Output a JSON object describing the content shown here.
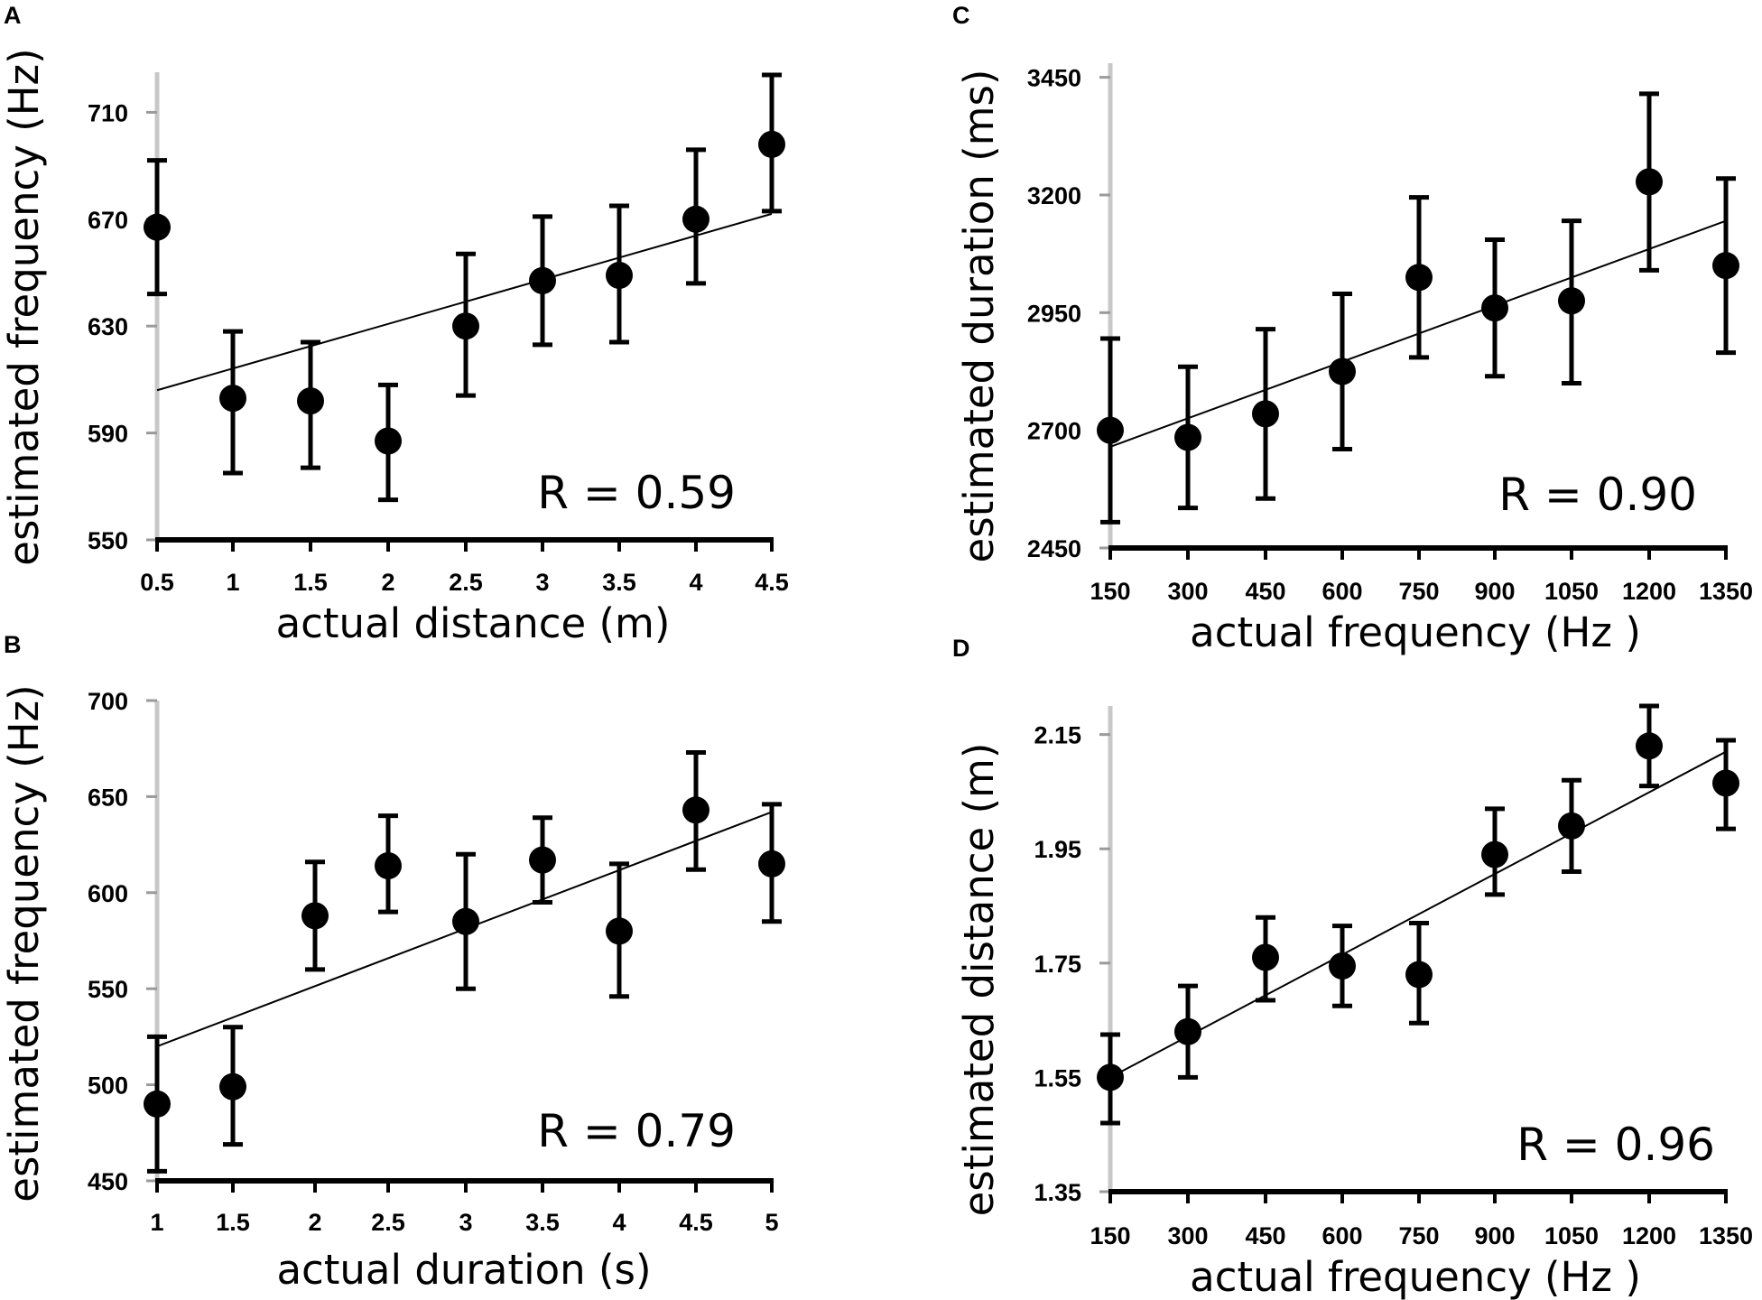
{
  "chart_data": [
    {
      "type": "scatter",
      "panel": "A",
      "xlabel": "actual distance (m)",
      "ylabel": "estimated frequency (Hz)",
      "annotation": "R = 0.59",
      "x_ticks": [
        "0.5",
        "1",
        "1.5",
        "2",
        "2.5",
        "3",
        "3.5",
        "4",
        "4.5"
      ],
      "y_ticks": [
        "550",
        "590",
        "630",
        "670",
        "710"
      ],
      "xlim": [
        0.5,
        4.5
      ],
      "ylim": [
        550,
        725
      ],
      "x": [
        0.5,
        1,
        1.5,
        2,
        2.5,
        3,
        3.5,
        4,
        4.5
      ],
      "y": [
        667,
        603,
        602,
        587,
        630,
        647,
        649,
        670,
        698
      ],
      "err_low": [
        642,
        575,
        577,
        565,
        604,
        623,
        624,
        646,
        673
      ],
      "err_high": [
        692,
        628,
        624,
        608,
        657,
        671,
        675,
        696,
        724
      ],
      "trendline": [
        [
          0.5,
          606
        ],
        [
          4.5,
          672
        ]
      ]
    },
    {
      "type": "scatter",
      "panel": "B",
      "xlabel": "actual duration (s)",
      "ylabel": "estimated frequency (Hz)",
      "annotation": "R = 0.79",
      "x_ticks": [
        "1",
        "1.5",
        "2",
        "2.5",
        "3",
        "3.5",
        "4",
        "4.5",
        "5"
      ],
      "y_ticks": [
        "450",
        "500",
        "550",
        "600",
        "650",
        "700"
      ],
      "xlim": [
        1,
        5
      ],
      "ylim": [
        450,
        700
      ],
      "x": [
        1,
        1.5,
        2,
        2.5,
        3,
        3.5,
        4,
        4.5,
        5
      ],
      "y": [
        490,
        499,
        588,
        614,
        585,
        617,
        580,
        643,
        615
      ],
      "err_low": [
        455,
        469,
        560,
        590,
        550,
        595,
        546,
        612,
        585
      ],
      "err_high": [
        525,
        530,
        616,
        640,
        620,
        639,
        615,
        673,
        646
      ],
      "trendline": [
        [
          1,
          520
        ],
        [
          5,
          642
        ]
      ]
    },
    {
      "type": "scatter",
      "panel": "C",
      "xlabel": "actual frequency (Hz )",
      "ylabel": "estimated duration (ms)",
      "annotation": "R = 0.90",
      "x_ticks": [
        "150",
        "300",
        "450",
        "600",
        "750",
        "900",
        "1050",
        "1200",
        "1350"
      ],
      "y_ticks": [
        "2450",
        "2700",
        "2950",
        "3200",
        "3450"
      ],
      "xlim": [
        150,
        1350
      ],
      "ylim": [
        2450,
        3480
      ],
      "x": [
        150,
        300,
        450,
        600,
        750,
        900,
        1050,
        1200,
        1350
      ],
      "y": [
        2700,
        2685,
        2735,
        2825,
        3025,
        2960,
        2975,
        3228,
        3050
      ],
      "err_low": [
        2505,
        2535,
        2555,
        2660,
        2855,
        2815,
        2800,
        3040,
        2865
      ],
      "err_high": [
        2895,
        2835,
        2915,
        2990,
        3195,
        3105,
        3145,
        3415,
        3235
      ],
      "trendline": [
        [
          150,
          2665
        ],
        [
          1350,
          3145
        ]
      ]
    },
    {
      "type": "scatter",
      "panel": "D",
      "xlabel": "actual frequency (Hz )",
      "ylabel": "estimated distance (m)",
      "annotation": "R = 0.96",
      "x_ticks": [
        "150",
        "300",
        "450",
        "600",
        "750",
        "900",
        "1050",
        "1200",
        "1350"
      ],
      "y_ticks": [
        "1.35",
        "1.55",
        "1.75",
        "1.95",
        "2.15"
      ],
      "xlim": [
        150,
        1350
      ],
      "ylim": [
        1.35,
        2.2
      ],
      "x": [
        150,
        300,
        450,
        600,
        750,
        900,
        1050,
        1200,
        1350
      ],
      "y": [
        1.55,
        1.63,
        1.76,
        1.745,
        1.73,
        1.94,
        1.99,
        2.13,
        2.065
      ],
      "err_low": [
        1.47,
        1.55,
        1.685,
        1.675,
        1.645,
        1.87,
        1.91,
        2.06,
        1.985
      ],
      "err_high": [
        1.625,
        1.71,
        1.83,
        1.815,
        1.82,
        2.02,
        2.07,
        2.2,
        2.14
      ],
      "trendline": [
        [
          150,
          1.55
        ],
        [
          1350,
          2.12
        ]
      ]
    }
  ]
}
